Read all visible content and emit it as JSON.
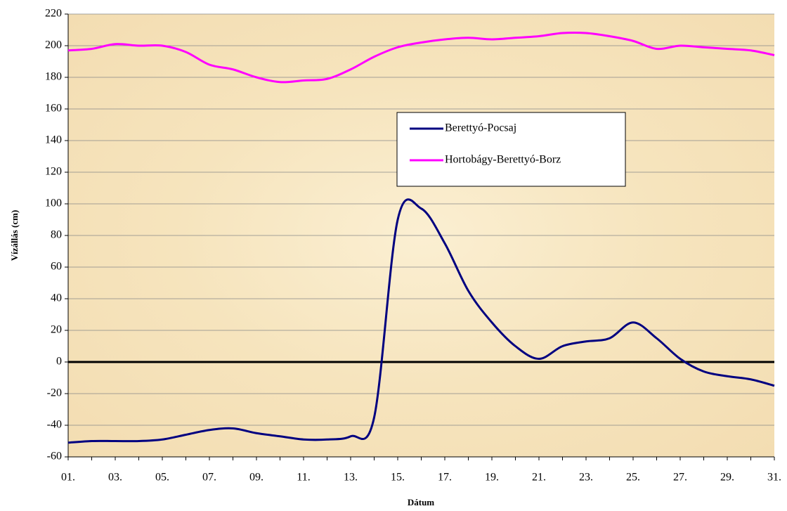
{
  "chart_data": {
    "type": "line",
    "xlabel": "Dátum",
    "ylabel": "Vízállás (cm)",
    "categories": [
      "01.",
      null,
      "03.",
      null,
      "05.",
      null,
      "07.",
      null,
      "09.",
      null,
      "11.",
      null,
      "13.",
      null,
      "15.",
      null,
      "17.",
      null,
      "19.",
      null,
      "21.",
      null,
      "23.",
      null,
      "25.",
      null,
      "27.",
      null,
      "29.",
      null,
      "31."
    ],
    "series": [
      {
        "name": "Berettyó-Pocsaj",
        "color": "#000080",
        "values": [
          -51,
          -50,
          -50,
          -50,
          -49,
          -46,
          -43,
          -42,
          -45,
          -47,
          -49,
          -49,
          -47,
          -35,
          90,
          97,
          75,
          45,
          25,
          10,
          2,
          10,
          13,
          15,
          25,
          15,
          2,
          -6,
          -9,
          -11,
          -15
        ]
      },
      {
        "name": "Hortobágy-Berettyó-Borz",
        "color": "#ff00ff",
        "values": [
          197,
          198,
          201,
          200,
          200,
          196,
          188,
          185,
          180,
          177,
          178,
          179,
          185,
          193,
          199,
          202,
          204,
          205,
          204,
          205,
          206,
          208,
          208,
          206,
          203,
          198,
          200,
          199,
          198,
          197,
          194
        ]
      }
    ],
    "ylim": [
      -60,
      220
    ],
    "yticks": [
      -60,
      -40,
      -20,
      0,
      20,
      40,
      60,
      80,
      100,
      120,
      140,
      160,
      180,
      200,
      220
    ],
    "grid": true,
    "legend": "center"
  }
}
